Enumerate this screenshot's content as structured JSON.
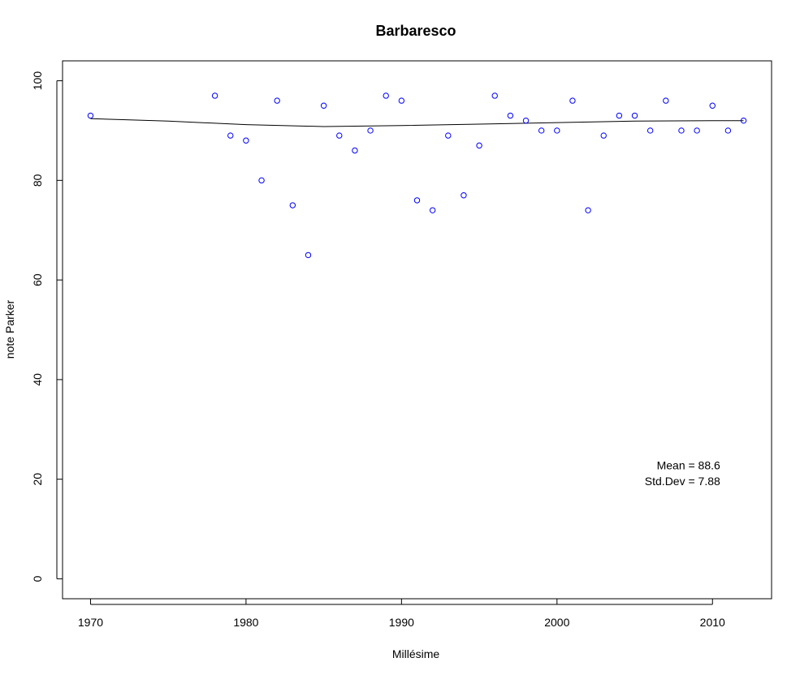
{
  "chart_data": {
    "type": "scatter",
    "title": "Barbaresco",
    "xlabel": "Millésime",
    "ylabel": "note Parker",
    "xlim": [
      1968.2,
      2013.8
    ],
    "ylim": [
      -4,
      104
    ],
    "xticks": [
      1970,
      1980,
      1990,
      2000,
      2010
    ],
    "yticks": [
      0,
      20,
      40,
      60,
      80,
      100
    ],
    "grid": false,
    "point_color": "#0000ff",
    "line_color": "#000000",
    "points": [
      {
        "x": 1970,
        "y": 93
      },
      {
        "x": 1978,
        "y": 97
      },
      {
        "x": 1979,
        "y": 89
      },
      {
        "x": 1980,
        "y": 88
      },
      {
        "x": 1981,
        "y": 80
      },
      {
        "x": 1982,
        "y": 96
      },
      {
        "x": 1983,
        "y": 75
      },
      {
        "x": 1984,
        "y": 65
      },
      {
        "x": 1985,
        "y": 95
      },
      {
        "x": 1986,
        "y": 89
      },
      {
        "x": 1987,
        "y": 86
      },
      {
        "x": 1988,
        "y": 90
      },
      {
        "x": 1989,
        "y": 97
      },
      {
        "x": 1990,
        "y": 96
      },
      {
        "x": 1991,
        "y": 76
      },
      {
        "x": 1992,
        "y": 74
      },
      {
        "x": 1993,
        "y": 89
      },
      {
        "x": 1994,
        "y": 77
      },
      {
        "x": 1995,
        "y": 87
      },
      {
        "x": 1996,
        "y": 97
      },
      {
        "x": 1997,
        "y": 93
      },
      {
        "x": 1998,
        "y": 92
      },
      {
        "x": 1999,
        "y": 90
      },
      {
        "x": 2000,
        "y": 90
      },
      {
        "x": 2001,
        "y": 96
      },
      {
        "x": 2002,
        "y": 74
      },
      {
        "x": 2003,
        "y": 89
      },
      {
        "x": 2004,
        "y": 93
      },
      {
        "x": 2005,
        "y": 93
      },
      {
        "x": 2006,
        "y": 90
      },
      {
        "x": 2007,
        "y": 96
      },
      {
        "x": 2008,
        "y": 90
      },
      {
        "x": 2009,
        "y": 90
      },
      {
        "x": 2010,
        "y": 95
      },
      {
        "x": 2011,
        "y": 90
      },
      {
        "x": 2012,
        "y": 92
      }
    ],
    "smooth_line": [
      {
        "x": 1970,
        "y": 92.4
      },
      {
        "x": 1975,
        "y": 91.9
      },
      {
        "x": 1980,
        "y": 91.2
      },
      {
        "x": 1985,
        "y": 90.8
      },
      {
        "x": 1990,
        "y": 91.0
      },
      {
        "x": 1995,
        "y": 91.3
      },
      {
        "x": 2000,
        "y": 91.6
      },
      {
        "x": 2005,
        "y": 91.9
      },
      {
        "x": 2010,
        "y": 92.0
      },
      {
        "x": 2012,
        "y": 92.0
      }
    ],
    "annotations": [
      {
        "text": "Mean = 88.6",
        "x": 2010.5,
        "y": 22
      },
      {
        "text": "Std.Dev = 7.88",
        "x": 2010.5,
        "y": 18.8
      }
    ]
  }
}
